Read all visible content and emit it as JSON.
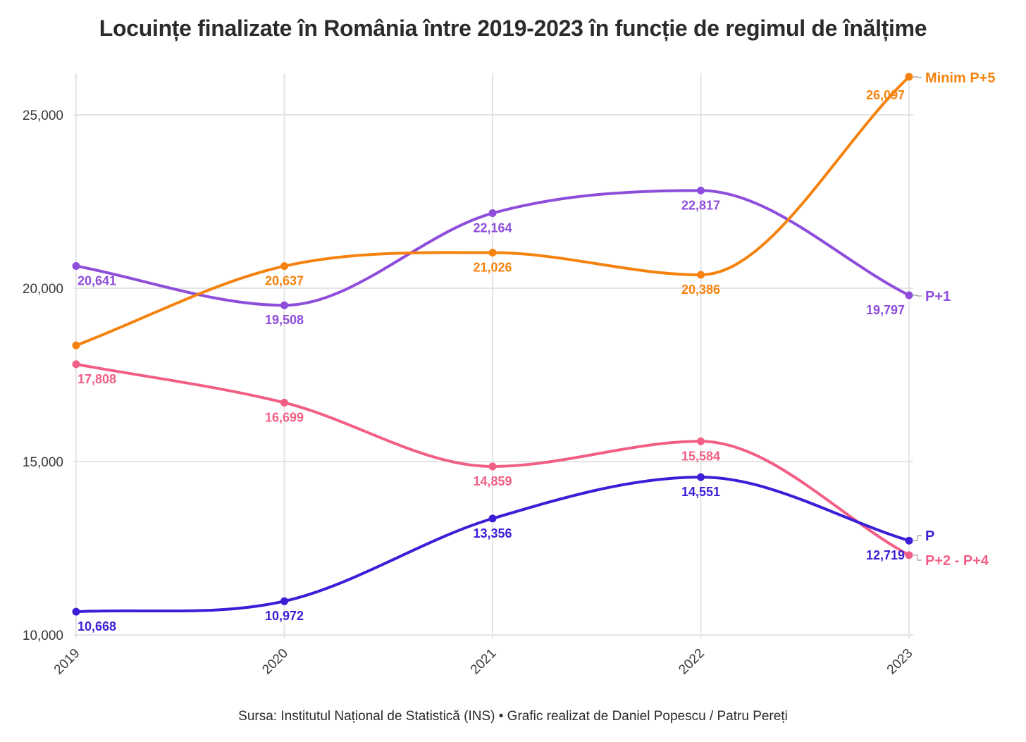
{
  "chart_data": {
    "type": "line",
    "title": "Locuințe finalizate în România între 2019-2023 în funcție de regimul de înălțime",
    "source": "Sursa: Institutul Național de Statistică (INS) • Grafic realizat de Daniel Popescu / Patru Pereți",
    "x": [
      "2019",
      "2020",
      "2021",
      "2022",
      "2023"
    ],
    "ylim": [
      10000,
      26300
    ],
    "yticks": [
      10000,
      15000,
      20000,
      25000
    ],
    "ytick_labels": [
      "10,000",
      "15,000",
      "20,000",
      "25,000"
    ],
    "grid": true,
    "series": [
      {
        "name": "P+1",
        "color": "#8e4ddb",
        "values": [
          20641,
          19508,
          22164,
          22817,
          19797
        ],
        "labels": [
          "20,641",
          "19,508",
          "22,164",
          "22,817",
          "19,797"
        ]
      },
      {
        "name": "Minim P+5",
        "color": "#f5820d",
        "values": [
          18350,
          20637,
          21026,
          20386,
          26097
        ],
        "labels": [
          "",
          "20,637",
          "21,026",
          "20,386",
          "26,097"
        ]
      },
      {
        "name": "P+2 - P+4",
        "color": "#f25f85",
        "values": [
          17808,
          16699,
          14859,
          15584,
          12300
        ],
        "labels": [
          "17,808",
          "16,699",
          "14,859",
          "15,584",
          ""
        ]
      },
      {
        "name": "P",
        "color": "#3a1fd6",
        "values": [
          10668,
          10972,
          13356,
          14551,
          12719
        ],
        "labels": [
          "10,668",
          "10,972",
          "13,356",
          "14,551",
          "12,719"
        ]
      }
    ]
  }
}
